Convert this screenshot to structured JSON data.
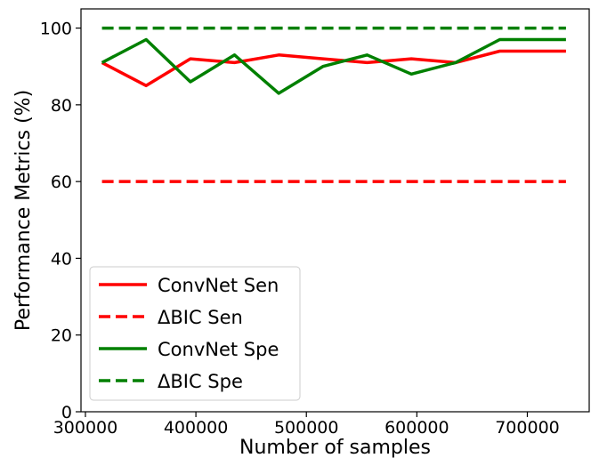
{
  "chart_data": {
    "type": "line",
    "xlabel": "Number of samples",
    "ylabel": "Performance Metrics (%)",
    "xlim": [
      296000,
      756000
    ],
    "ylim": [
      0,
      105
    ],
    "xticks": [
      300000,
      400000,
      500000,
      600000,
      700000
    ],
    "xtick_labels": [
      "300000",
      "400000",
      "500000",
      "600000",
      "700000"
    ],
    "yticks": [
      0,
      20,
      40,
      60,
      80,
      100
    ],
    "ytick_labels": [
      "0",
      "20",
      "40",
      "60",
      "80",
      "100"
    ],
    "grid": false,
    "legend_position": "lower-left",
    "series": [
      {
        "name": "ConvNet Sen",
        "color": "#ff0000",
        "style": "solid",
        "x": [
          315000,
          355000,
          395000,
          435000,
          475000,
          515000,
          555000,
          595000,
          635000,
          675000,
          735000
        ],
        "values": [
          91,
          85,
          92,
          91,
          93,
          92,
          91,
          92,
          91,
          94,
          94
        ]
      },
      {
        "name": "ΔBIC Sen",
        "color": "#ff0000",
        "style": "dashed",
        "x": [
          315000,
          735000
        ],
        "values": [
          60,
          60
        ]
      },
      {
        "name": "ConvNet Spe",
        "color": "#008000",
        "style": "solid",
        "x": [
          315000,
          355000,
          395000,
          435000,
          475000,
          515000,
          555000,
          595000,
          635000,
          675000,
          735000
        ],
        "values": [
          91,
          97,
          86,
          93,
          83,
          90,
          93,
          88,
          91,
          97,
          97
        ]
      },
      {
        "name": "ΔBIC Spe",
        "color": "#008000",
        "style": "dashed",
        "x": [
          315000,
          735000
        ],
        "values": [
          100,
          100
        ]
      }
    ]
  }
}
